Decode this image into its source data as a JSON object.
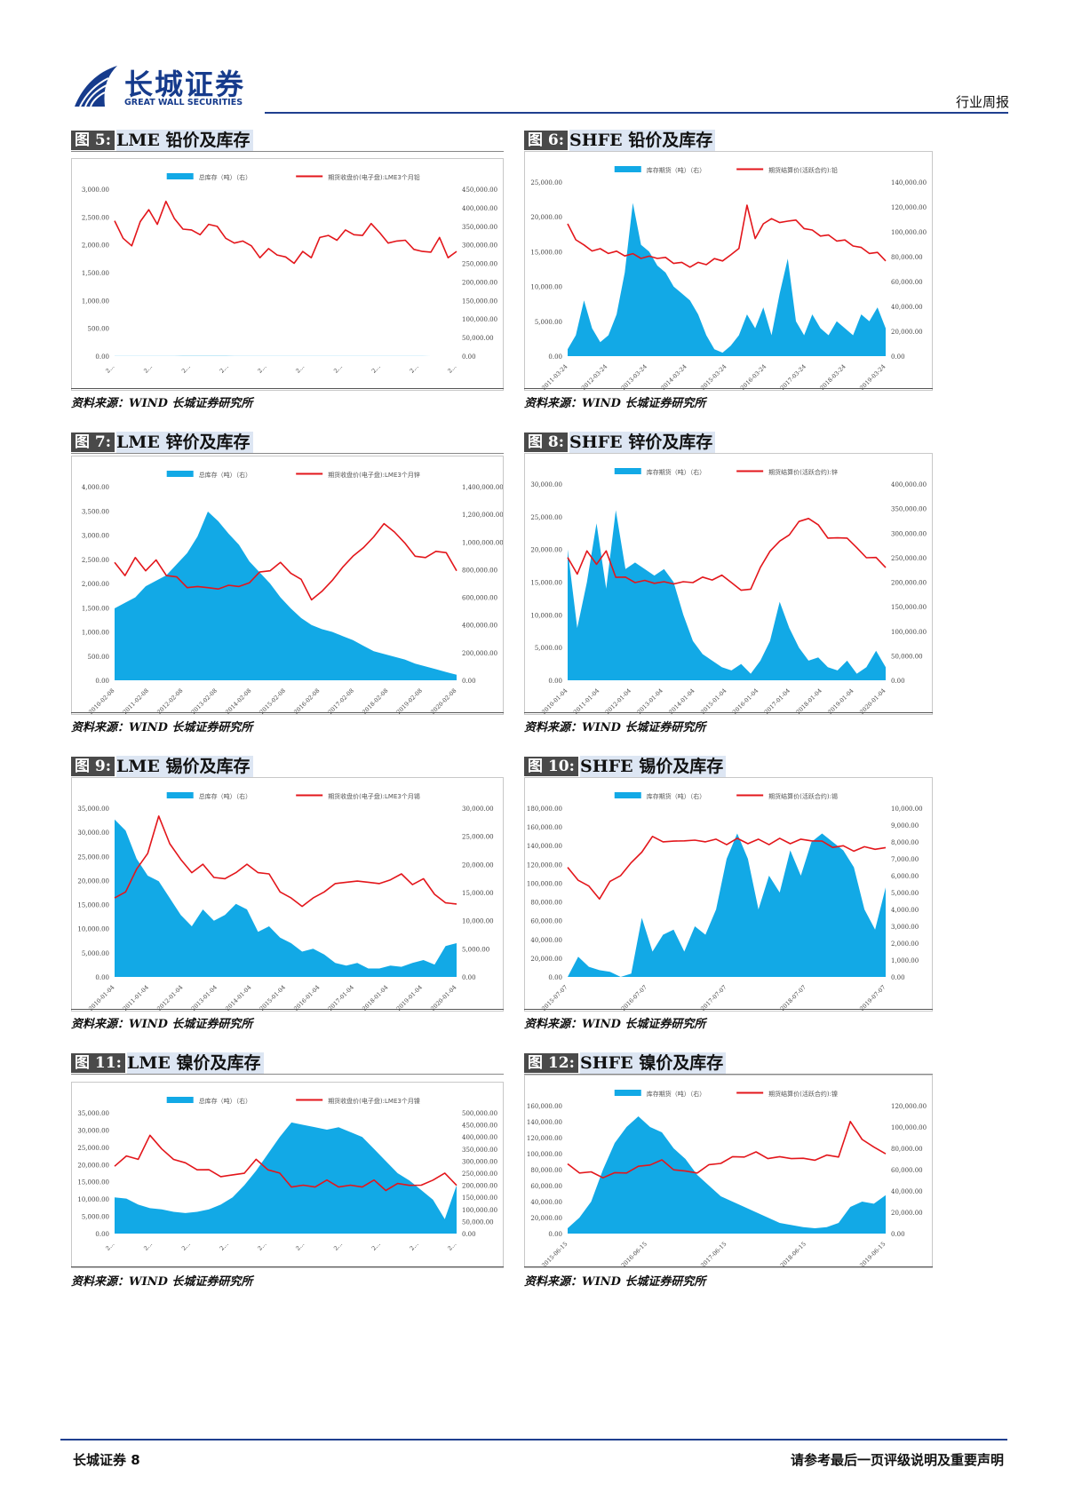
{
  "header": {
    "company_cn": "长城证券",
    "company_en": "GREAT WALL SECURITIES",
    "report_type": "行业周报"
  },
  "colors": {
    "area": "#12a9e6",
    "line": "#e3161b",
    "header_rule": "#1f3f8f",
    "label_bg": "#4a4a4a",
    "title_bg": "#dde6f3"
  },
  "figures": [
    {
      "label": "图 5:",
      "title": "LME 铅价及库存",
      "source": "资料来源：WIND 长城证券研究所",
      "chart_data": {
        "type": "area+line",
        "legend_area": "总库存（吨）（右）",
        "legend_line": "期货收盘价(电子盘):LME3个月铅",
        "left_axis": [
          "3,000.00",
          "2,500.00",
          "2,000.00",
          "1,500.00",
          "1,000.00",
          "500.00",
          "0.00"
        ],
        "right_axis": [
          "450,000.00",
          "400,000.00",
          "350,000.00",
          "300,000.00",
          "250,000.00",
          "200,000.00",
          "150,000.00",
          "100,000.00",
          "50,000.00",
          "0.00"
        ],
        "x_labels": [
          "2...",
          "2...",
          "2...",
          "2...",
          "2...",
          "2...",
          "2...",
          "2...",
          "2...",
          "2..."
        ],
        "area_values": [
          170,
          210,
          230,
          245,
          260,
          270,
          280,
          300,
          360,
          400,
          380,
          420,
          400,
          390,
          350,
          330,
          310,
          300,
          290,
          280,
          300,
          270,
          260,
          250,
          240,
          230,
          260,
          250,
          240,
          250,
          230,
          215,
          200,
          180,
          160,
          140,
          120,
          100,
          90,
          75,
          70
        ],
        "line_values": [
          2400,
          2150,
          1950,
          2450,
          2600,
          2400,
          2750,
          2500,
          2250,
          2300,
          2150,
          2400,
          2300,
          2150,
          2000,
          2100,
          1950,
          1800,
          1900,
          1850,
          1750,
          1700,
          1850,
          1800,
          2100,
          2200,
          2050,
          2300,
          2150,
          2200,
          2350,
          2250,
          2000,
          2100,
          2050,
          1950,
          1850,
          1900,
          2100,
          1800,
          1850
        ],
        "area_max": 450000,
        "line_max": 3000
      }
    },
    {
      "label": "图 6:",
      "title": "SHFE 铅价及库存",
      "source": "资料来源：WIND 长城证券研究所",
      "chart_data": {
        "type": "area+line",
        "legend_area": "库存期货（吨）（右）",
        "legend_line": "期货结算价(活跃合约):铅",
        "left_axis": [
          "25,000.00",
          "20,000.00",
          "15,000.00",
          "10,000.00",
          "5,000.00",
          "0.00"
        ],
        "right_axis": [
          "140,000.00",
          "120,000.00",
          "100,000.00",
          "80,000.00",
          "60,000.00",
          "40,000.00",
          "20,000.00",
          "0.00"
        ],
        "x_labels": [
          "2011-03-24",
          "2012-03-24",
          "2013-03-24",
          "2014-03-24",
          "2015-03-24",
          "2016-03-24",
          "2017-03-24",
          "2018-03-24",
          "2019-03-24"
        ],
        "area_values": [
          1000,
          3000,
          8000,
          4000,
          2000,
          3000,
          6000,
          12000,
          22000,
          16000,
          15000,
          13000,
          12000,
          10000,
          9000,
          8000,
          6000,
          3000,
          1000,
          500,
          1500,
          3000,
          6000,
          4000,
          7000,
          3000,
          9000,
          14000,
          5000,
          3000,
          6000,
          4000,
          3000,
          5000,
          4000,
          3000,
          6000,
          5000,
          7000,
          4000
        ],
        "line_values": [
          105000,
          95000,
          88000,
          86000,
          85000,
          84000,
          83000,
          82000,
          81000,
          80000,
          79000,
          80000,
          78000,
          76000,
          74000,
          73000,
          74000,
          75000,
          77000,
          78000,
          80000,
          88000,
          120000,
          96000,
          105000,
          112000,
          106000,
          110000,
          108000,
          104000,
          100000,
          98000,
          96000,
          94000,
          92000,
          90000,
          86000,
          84000,
          82000,
          78000
        ],
        "area_max": 25000,
        "line_max": 140000
      }
    },
    {
      "label": "图 7:",
      "title": "LME 锌价及库存",
      "source": "资料来源：WIND 长城证券研究所",
      "chart_data": {
        "type": "area+line",
        "legend_area": "总库存（吨）（右）",
        "legend_line": "期货收盘价(电子盘):LME3个月锌",
        "left_axis": [
          "4,000.00",
          "3,500.00",
          "3,000.00",
          "2,500.00",
          "2,000.00",
          "1,500.00",
          "1,000.00",
          "500.00",
          "0.00"
        ],
        "right_axis": [
          "1,400,000.00",
          "1,200,000.00",
          "1,000,000.00",
          "800,000.00",
          "600,000.00",
          "400,000.00",
          "200,000.00",
          "0.00"
        ],
        "x_labels": [
          "2010-02-08",
          "2011-02-08",
          "2012-02-08",
          "2013-02-08",
          "2014-02-08",
          "2015-02-08",
          "2016-02-08",
          "2017-02-08",
          "2018-02-08",
          "2019-02-08",
          "2020-02-08"
        ],
        "area_values": [
          520000,
          560000,
          600000,
          680000,
          720000,
          760000,
          840000,
          920000,
          1040000,
          1220000,
          1150000,
          1060000,
          980000,
          860000,
          780000,
          700000,
          600000,
          520000,
          450000,
          400000,
          370000,
          350000,
          320000,
          290000,
          250000,
          210000,
          190000,
          170000,
          150000,
          120000,
          100000,
          80000,
          60000,
          40000
        ],
        "line_values": [
          2400,
          2200,
          2500,
          2300,
          2450,
          2200,
          2100,
          1950,
          1900,
          1950,
          1850,
          2000,
          1900,
          2050,
          2200,
          2300,
          2400,
          2250,
          2050,
          1700,
          1800,
          2100,
          2300,
          2600,
          2700,
          3000,
          3200,
          3100,
          2800,
          2600,
          2500,
          2700,
          2600,
          2300
        ],
        "area_max": 1400000,
        "line_max": 4000
      }
    },
    {
      "label": "图 8:",
      "title": "SHFE 锌价及库存",
      "source": "资料来源：WIND 长城证券研究所",
      "chart_data": {
        "type": "area+line",
        "legend_area": "库存期货（吨）（右）",
        "legend_line": "期货结算价(活跃合约):锌",
        "left_axis": [
          "30,000.00",
          "25,000.00",
          "20,000.00",
          "15,000.00",
          "10,000.00",
          "5,000.00",
          "0.00"
        ],
        "right_axis": [
          "400,000.00",
          "350,000.00",
          "300,000.00",
          "250,000.00",
          "200,000.00",
          "150,000.00",
          "100,000.00",
          "50,000.00",
          "0.00"
        ],
        "x_labels": [
          "2010-01-04",
          "2011-01-04",
          "2012-01-04",
          "2013-01-04",
          "2014-01-04",
          "2015-01-04",
          "2016-01-04",
          "2017-01-04",
          "2018-01-04",
          "2019-01-04",
          "2020-01-04"
        ],
        "area_values": [
          20000,
          8000,
          15000,
          24000,
          14000,
          26000,
          17000,
          18000,
          17000,
          16000,
          17000,
          15000,
          10000,
          6000,
          4000,
          3000,
          2000,
          1500,
          2500,
          1000,
          3000,
          6000,
          12000,
          8000,
          5000,
          3000,
          3500,
          2000,
          1500,
          3000,
          1000,
          2000,
          4500,
          2000
        ],
        "line_values": [
          18500,
          16500,
          19500,
          18000,
          19500,
          16000,
          15500,
          15200,
          15000,
          15100,
          14800,
          15000,
          14800,
          15200,
          15500,
          15600,
          15800,
          15200,
          13500,
          14200,
          17000,
          20000,
          21000,
          22500,
          24000,
          25000,
          23500,
          22000,
          21500,
          22000,
          20000,
          19000,
          18500,
          17500
        ],
        "area_max": 30000,
        "line_max": 30000
      }
    },
    {
      "label": "图 9:",
      "title": "LME 锡价及库存",
      "source": "资料来源：WIND 长城证券研究所",
      "chart_data": {
        "type": "area+line",
        "legend_area": "总库存（吨）（右）",
        "legend_line": "期货收盘价(电子盘):LME3个月锡",
        "left_axis": [
          "35,000.00",
          "30,000.00",
          "25,000.00",
          "20,000.00",
          "15,000.00",
          "10,000.00",
          "5,000.00",
          "0.00"
        ],
        "right_axis": [
          "30,000.00",
          "25,000.00",
          "20,000.00",
          "15,000.00",
          "10,000.00",
          "5,000.00",
          "0.00"
        ],
        "x_labels": [
          "2010-01-04",
          "2011-01-04",
          "2012-01-04",
          "2013-01-04",
          "2014-01-04",
          "2015-01-04",
          "2016-01-04",
          "2017-01-04",
          "2018-01-04",
          "2019-01-04",
          "2020-01-04"
        ],
        "area_values": [
          28000,
          26000,
          21000,
          18000,
          17000,
          14000,
          11000,
          9000,
          12000,
          10000,
          11000,
          13000,
          12000,
          8000,
          9000,
          7000,
          6000,
          4500,
          5000,
          4000,
          2500,
          2000,
          2500,
          1500,
          1500,
          2000,
          1800,
          2500,
          3000,
          2200,
          5500,
          6000
        ],
        "line_values": [
          16000,
          18000,
          22000,
          26000,
          33000,
          28000,
          24000,
          22000,
          23000,
          21000,
          20000,
          22000,
          23000,
          22000,
          21000,
          18000,
          16000,
          15000,
          16000,
          18000,
          19000,
          20000,
          19500,
          20000,
          19000,
          20500,
          21000,
          19500,
          20000,
          17500,
          15000,
          15500
        ],
        "area_max": 30000,
        "line_max": 35000
      }
    },
    {
      "label": "图 10:",
      "title": "SHFE 锡价及库存",
      "source": "资料来源：WIND 长城证券研究所",
      "chart_data": {
        "type": "area+line",
        "legend_area": "库存期货（吨）（右）",
        "legend_line": "期货结算价(活跃合约):锡",
        "left_axis": [
          "180,000.00",
          "160,000.00",
          "140,000.00",
          "120,000.00",
          "100,000.00",
          "80,000.00",
          "60,000.00",
          "40,000.00",
          "20,000.00",
          "0.00"
        ],
        "right_axis": [
          "10,000.00",
          "9,000.00",
          "8,000.00",
          "7,000.00",
          "6,000.00",
          "5,000.00",
          "4,000.00",
          "3,000.00",
          "2,000.00",
          "1,000.00",
          "0.00"
        ],
        "x_labels": [
          "2015-07-07",
          "2016-07-07",
          "2017-07-07",
          "2018-07-07",
          "2019-07-07"
        ],
        "area_values": [
          0,
          1200,
          600,
          400,
          300,
          0,
          200,
          3500,
          1500,
          2500,
          2800,
          1500,
          3000,
          2500,
          4000,
          7000,
          8500,
          7000,
          4000,
          6000,
          5000,
          7500,
          6000,
          8000,
          8500,
          8000,
          7500,
          6500,
          4000,
          2800,
          5300
        ],
        "line_values": [
          115000,
          105000,
          95000,
          85000,
          100000,
          110000,
          120000,
          135000,
          148000,
          146000,
          143000,
          147000,
          144000,
          146000,
          145000,
          143000,
          146000,
          144000,
          145000,
          143000,
          146000,
          144000,
          145000,
          147000,
          143000,
          140000,
          138000,
          136000,
          137000,
          138000,
          136000
        ],
        "area_max": 10000,
        "line_max": 180000
      }
    },
    {
      "label": "图 11:",
      "title": "LME 镍价及库存",
      "source": "资料来源：WIND 长城证券研究所",
      "chart_data": {
        "type": "area+line",
        "legend_area": "总库存（吨）（右）",
        "legend_line": "期货收盘价(电子盘):LME3个月镍",
        "left_axis": [
          "35,000.00",
          "30,000.00",
          "25,000.00",
          "20,000.00",
          "15,000.00",
          "10,000.00",
          "5,000.00",
          "0.00"
        ],
        "right_axis": [
          "500,000.00",
          "450,000.00",
          "400,000.00",
          "350,000.00",
          "300,000.00",
          "250,000.00",
          "200,000.00",
          "150,000.00",
          "100,000.00",
          "50,000.00",
          "0.00"
        ],
        "x_labels": [
          "2...",
          "2...",
          "2...",
          "2...",
          "2...",
          "2...",
          "2...",
          "2...",
          "2...",
          "2..."
        ],
        "area_values": [
          150000,
          145000,
          120000,
          105000,
          100000,
          90000,
          85000,
          90000,
          100000,
          120000,
          150000,
          200000,
          260000,
          330000,
          400000,
          460000,
          450000,
          440000,
          430000,
          440000,
          420000,
          400000,
          350000,
          300000,
          250000,
          220000,
          180000,
          140000,
          60000,
          200000
        ],
        "line_values": [
          19000,
          23000,
          21000,
          29000,
          24000,
          22000,
          20000,
          19000,
          18000,
          17000,
          16500,
          18000,
          21000,
          19000,
          17000,
          14000,
          13500,
          14000,
          15000,
          14000,
          13500,
          14000,
          15000,
          13000,
          14000,
          14500,
          13500,
          16000,
          17000,
          14500
        ],
        "area_max": 500000,
        "line_max": 35000
      }
    },
    {
      "label": "图 12:",
      "title": "SHFE 镍价及库存",
      "source": "资料来源：WIND 长城证券研究所",
      "chart_data": {
        "type": "area+line",
        "legend_area": "库存期货（吨）（右）",
        "legend_line": "期货结算价(活跃合约):镍",
        "left_axis": [
          "160,000.00",
          "140,000.00",
          "120,000.00",
          "100,000.00",
          "80,000.00",
          "60,000.00",
          "40,000.00",
          "20,000.00",
          "0.00"
        ],
        "right_axis": [
          "120,000.00",
          "100,000.00",
          "80,000.00",
          "60,000.00",
          "40,000.00",
          "20,000.00",
          "0.00"
        ],
        "x_labels": [
          "2015-06-15",
          "2016-06-15",
          "2017-06-15",
          "2018-06-15",
          "2019-06-15"
        ],
        "area_values": [
          5000,
          15000,
          30000,
          60000,
          85000,
          100000,
          110000,
          100000,
          95000,
          80000,
          70000,
          55000,
          45000,
          35000,
          30000,
          25000,
          20000,
          15000,
          10000,
          8000,
          6000,
          5000,
          6000,
          10000,
          25000,
          30000,
          28000,
          36000
        ],
        "line_values": [
          85000,
          78000,
          75000,
          72000,
          74000,
          78000,
          82000,
          88000,
          90000,
          82000,
          76000,
          78000,
          84000,
          90000,
          94000,
          98000,
          100000,
          96000,
          94000,
          96000,
          92000,
          94000,
          96000,
          98000,
          138000,
          120000,
          106000,
          102000
        ],
        "area_max": 120000,
        "line_max": 160000
      }
    }
  ],
  "footer": {
    "left": "长城证券 8",
    "right": "请参考最后一页评级说明及重要声明"
  }
}
